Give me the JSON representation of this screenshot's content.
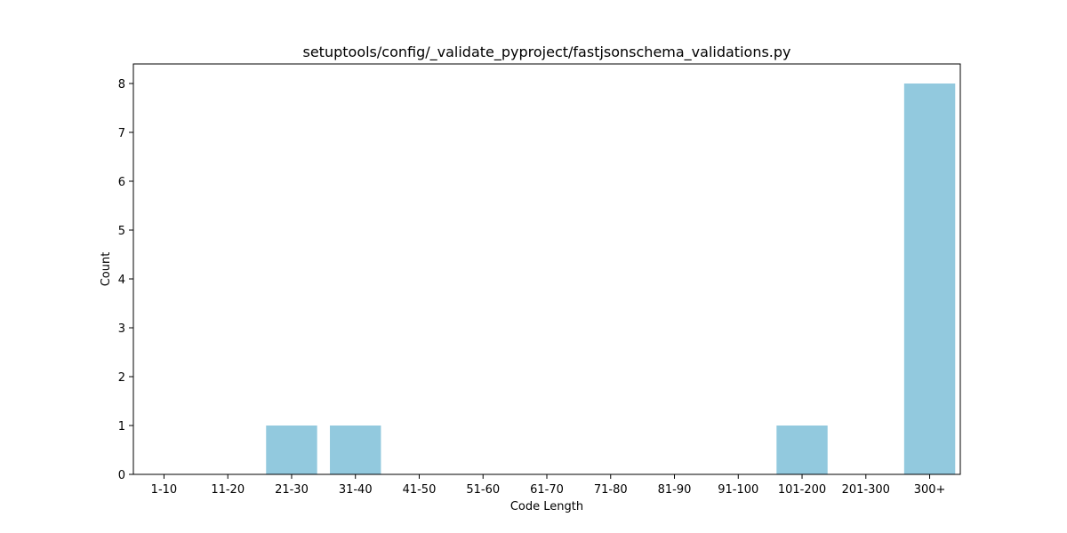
{
  "chart_data": {
    "type": "bar",
    "title": "setuptools/config/_validate_pyproject/fastjsonschema_validations.py",
    "xlabel": "Code Length",
    "ylabel": "Count",
    "categories": [
      "1-10",
      "11-20",
      "21-30",
      "31-40",
      "41-50",
      "51-60",
      "61-70",
      "71-80",
      "81-90",
      "91-100",
      "101-200",
      "201-300",
      "300+"
    ],
    "values": [
      0,
      0,
      1,
      1,
      0,
      0,
      0,
      0,
      0,
      0,
      1,
      0,
      8
    ],
    "ylim": [
      0,
      8.4
    ],
    "yticks": [
      0,
      1,
      2,
      3,
      4,
      5,
      6,
      7,
      8
    ],
    "grid": false,
    "legend": "none",
    "colors": {
      "bar": "#92c9de",
      "axis": "#000000"
    }
  }
}
